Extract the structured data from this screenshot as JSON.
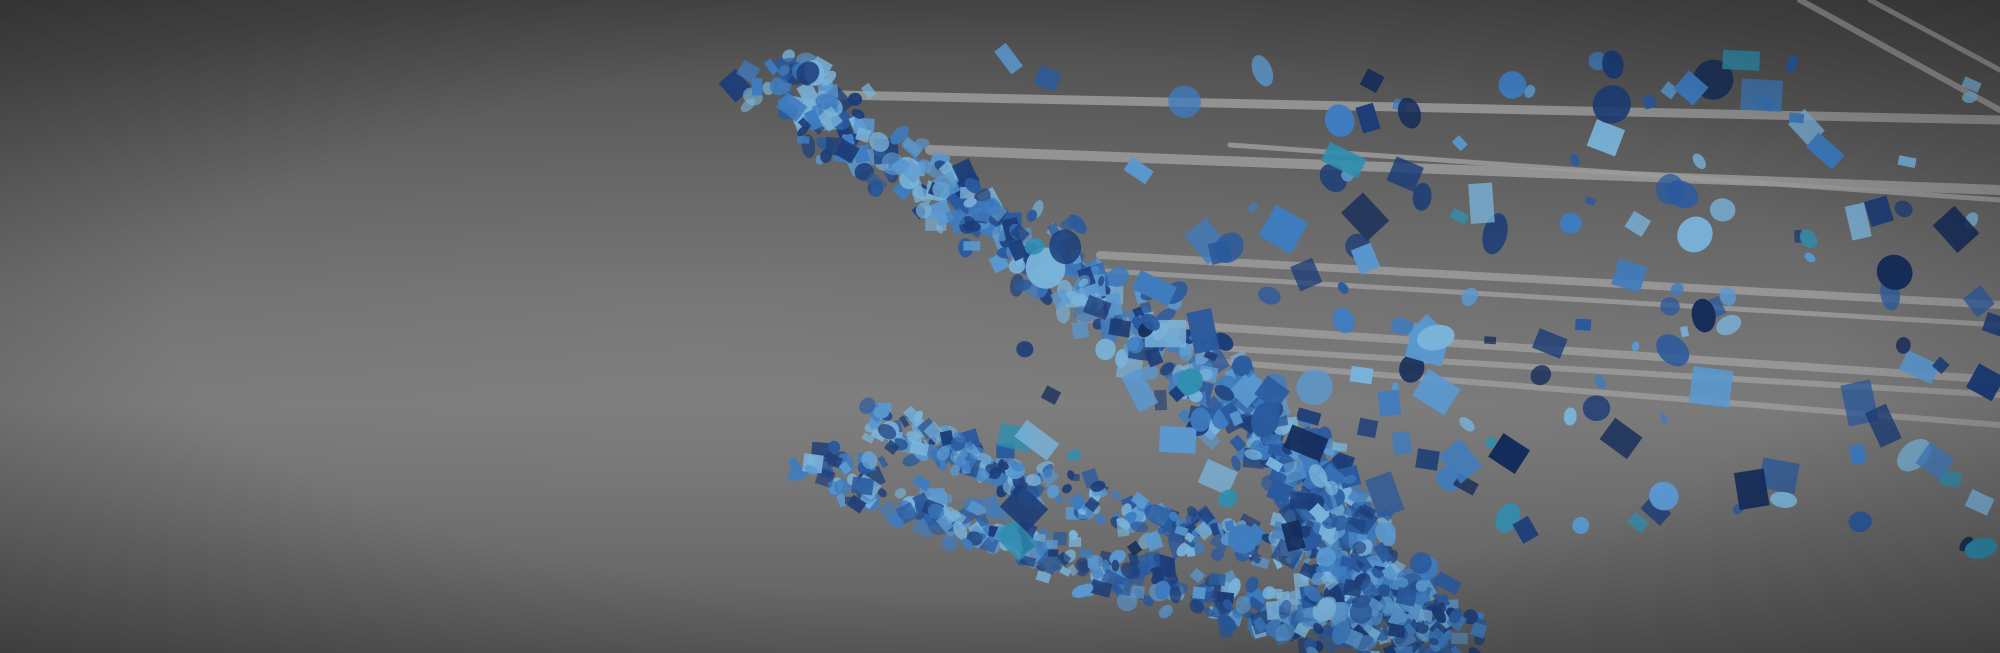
{
  "scene": {
    "subject": "abstract-3d-render",
    "background_colors": [
      "#4a4a4a",
      "#6e6e6e",
      "#7a7a7a",
      "#5a5a5a"
    ],
    "rod_color": "#9c9c9c",
    "particle_colors": [
      "#1c3d78",
      "#2a5a9e",
      "#3e7cc0",
      "#5a98cf",
      "#7ab3da",
      "#2f8fb0",
      "#142c5a"
    ],
    "vignette_color": "#000000"
  }
}
